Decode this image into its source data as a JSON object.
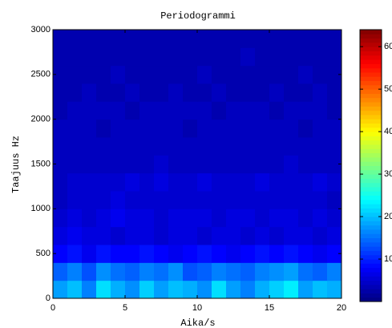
{
  "chart_data": {
    "type": "heatmap",
    "title": "Periodogrammi",
    "xlabel": "Aika/s",
    "ylabel": "Taajuus Hz",
    "colormap": "jet",
    "x_edges": [
      0,
      1,
      2,
      3,
      4,
      5,
      6,
      7,
      8,
      9,
      10,
      11,
      12,
      13,
      14,
      15,
      16,
      17,
      18,
      19,
      20
    ],
    "y_edges": [
      0,
      200,
      400,
      600,
      800,
      1000,
      1200,
      1400,
      1600,
      1800,
      2000,
      2200,
      2400,
      2600,
      2800,
      3000
    ],
    "z": [
      [
        18,
        20,
        16,
        22,
        19,
        17,
        21,
        18,
        20,
        19,
        17,
        22,
        18,
        16,
        19,
        21,
        23,
        18,
        20,
        19
      ],
      [
        14,
        16,
        13,
        17,
        15,
        14,
        16,
        15,
        17,
        13,
        14,
        16,
        15,
        14,
        16,
        17,
        18,
        15,
        14,
        16
      ],
      [
        8,
        9,
        7,
        9,
        8,
        8,
        9,
        8,
        7,
        8,
        9,
        8,
        7,
        8,
        9,
        8,
        9,
        8,
        7,
        8
      ],
      [
        6,
        7,
        6,
        6,
        5,
        6,
        6,
        5,
        6,
        6,
        5,
        6,
        6,
        5,
        6,
        5,
        6,
        6,
        5,
        6
      ],
      [
        5,
        6,
        5,
        6,
        7,
        6,
        6,
        5,
        6,
        6,
        6,
        5,
        6,
        6,
        5,
        6,
        6,
        5,
        6,
        5
      ],
      [
        4,
        5,
        5,
        5,
        6,
        5,
        5,
        5,
        5,
        5,
        5,
        5,
        5,
        5,
        5,
        5,
        5,
        5,
        5,
        4
      ],
      [
        4,
        5,
        5,
        5,
        5,
        6,
        5,
        6,
        5,
        5,
        6,
        5,
        5,
        5,
        6,
        5,
        5,
        5,
        6,
        5
      ],
      [
        4,
        4,
        4,
        4,
        4,
        4,
        4,
        5,
        4,
        4,
        4,
        4,
        4,
        4,
        4,
        4,
        5,
        4,
        4,
        4
      ],
      [
        4,
        4,
        4,
        4,
        4,
        4,
        4,
        4,
        4,
        4,
        4,
        4,
        4,
        4,
        4,
        4,
        4,
        4,
        4,
        4
      ],
      [
        4,
        4,
        4,
        3,
        4,
        4,
        4,
        4,
        4,
        3,
        4,
        4,
        4,
        4,
        4,
        4,
        4,
        3,
        4,
        4
      ],
      [
        3,
        4,
        4,
        4,
        4,
        3,
        4,
        4,
        4,
        4,
        4,
        3,
        4,
        4,
        4,
        3,
        4,
        4,
        4,
        3
      ],
      [
        3,
        3,
        4,
        3,
        3,
        4,
        3,
        3,
        4,
        3,
        3,
        4,
        3,
        3,
        3,
        4,
        3,
        3,
        4,
        3
      ],
      [
        3,
        3,
        3,
        3,
        4,
        3,
        3,
        3,
        3,
        3,
        4,
        3,
        3,
        3,
        3,
        3,
        3,
        4,
        3,
        3
      ],
      [
        3,
        3,
        3,
        3,
        3,
        3,
        3,
        3,
        3,
        3,
        3,
        3,
        3,
        4,
        3,
        3,
        3,
        3,
        3,
        3
      ],
      [
        3,
        3,
        3,
        3,
        3,
        3,
        3,
        3,
        3,
        3,
        3,
        3,
        3,
        3,
        3,
        3,
        3,
        3,
        3,
        3
      ]
    ],
    "xlim": [
      0,
      20
    ],
    "xticks": [
      0,
      5,
      10,
      15,
      20
    ],
    "ylim": [
      0,
      3000
    ],
    "yticks": [
      0,
      500,
      1000,
      1500,
      2000,
      2500,
      3000
    ],
    "clim": [
      0,
      64
    ],
    "cticks": [
      10,
      20,
      30,
      40,
      50,
      60
    ]
  }
}
